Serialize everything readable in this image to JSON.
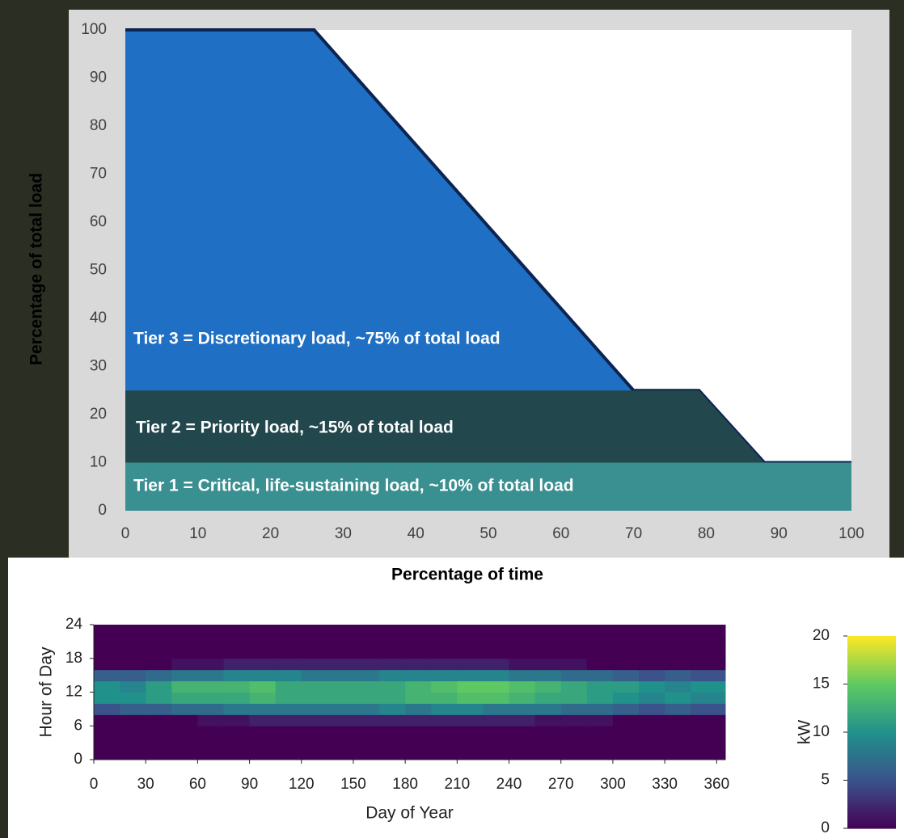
{
  "chart_data": [
    {
      "type": "area",
      "xlabel": "Percentage of time",
      "ylabel": "Percentage of total load",
      "x": [
        0,
        26,
        70,
        79,
        88,
        100
      ],
      "series": [
        {
          "name": "Tier 3 = Discretionary load, ~75% of total load",
          "color": "#1f6fc4",
          "values": [
            100,
            100,
            25,
            25,
            10,
            10
          ]
        },
        {
          "name": "Tier 2 = Priority load, ~15% of total load",
          "color": "#22474d",
          "values": [
            25,
            25,
            25,
            25,
            10,
            10
          ]
        },
        {
          "name": "Tier 1 = Critical, life-sustaining load, ~10% of total load",
          "color": "#3a8f91",
          "values": [
            10,
            10,
            10,
            10,
            10,
            10
          ]
        }
      ],
      "outline_color": "#0c2452",
      "xlim": [
        0,
        100
      ],
      "xticks": [
        0,
        10,
        20,
        30,
        40,
        50,
        60,
        70,
        80,
        90,
        100
      ],
      "ylim": [
        0,
        100
      ],
      "yticks": [
        0,
        10,
        20,
        30,
        40,
        50,
        60,
        70,
        80,
        90,
        100
      ],
      "grid": false
    },
    {
      "type": "heatmap",
      "xlabel": "Day of Year",
      "ylabel": "Hour of Day",
      "colorbar_label": "kW",
      "x": [
        0,
        15,
        30,
        45,
        60,
        75,
        90,
        105,
        120,
        135,
        150,
        165,
        180,
        195,
        210,
        225,
        240,
        255,
        270,
        285,
        300,
        315,
        330,
        345
      ],
      "y": [
        0,
        2,
        4,
        6,
        8,
        10,
        12,
        14,
        16,
        18,
        20,
        22
      ],
      "values": [
        [
          0,
          0,
          0,
          0,
          0,
          0,
          0,
          0,
          0,
          0,
          0,
          0,
          0,
          0,
          0,
          0,
          0,
          0,
          0,
          0,
          0,
          0,
          0,
          0
        ],
        [
          0,
          0,
          0,
          0,
          0,
          0,
          0,
          0,
          0,
          0,
          0,
          0,
          0,
          0,
          0,
          0,
          0,
          0,
          0,
          0,
          0,
          0,
          0,
          0
        ],
        [
          0,
          0,
          0,
          0,
          0,
          0,
          0,
          0,
          0,
          0,
          0,
          0,
          0,
          0,
          0,
          0,
          0,
          0,
          0,
          0,
          0,
          0,
          0,
          0
        ],
        [
          0,
          0,
          0,
          0,
          1,
          1,
          2,
          2,
          2,
          2,
          2,
          2,
          2,
          2,
          2,
          2,
          2,
          1,
          1,
          1,
          0,
          0,
          0,
          0
        ],
        [
          5,
          6,
          6,
          7,
          7,
          8,
          8,
          8,
          8,
          8,
          8,
          9,
          8,
          9,
          9,
          8,
          8,
          8,
          7,
          7,
          6,
          5,
          6,
          5
        ],
        [
          10,
          10,
          11,
          12,
          12,
          12,
          13,
          12,
          12,
          12,
          12,
          12,
          13,
          13,
          14,
          14,
          13,
          12,
          12,
          11,
          10,
          9,
          10,
          9
        ],
        [
          10,
          9,
          11,
          13,
          13,
          13,
          14,
          12,
          12,
          12,
          12,
          12,
          13,
          14,
          15,
          15,
          14,
          13,
          12,
          11,
          11,
          10,
          9,
          10
        ],
        [
          6,
          6,
          7,
          8,
          8,
          9,
          9,
          9,
          8,
          8,
          8,
          9,
          9,
          9,
          9,
          9,
          8,
          8,
          7,
          7,
          6,
          5,
          6,
          5
        ],
        [
          0,
          0,
          0,
          1,
          1,
          2,
          2,
          2,
          2,
          2,
          2,
          2,
          2,
          2,
          2,
          2,
          1,
          1,
          1,
          0,
          0,
          0,
          0,
          0
        ],
        [
          0,
          0,
          0,
          0,
          0,
          0,
          0,
          0,
          0,
          0,
          0,
          0,
          0,
          0,
          0,
          0,
          0,
          0,
          0,
          0,
          0,
          0,
          0,
          0
        ],
        [
          0,
          0,
          0,
          0,
          0,
          0,
          0,
          0,
          0,
          0,
          0,
          0,
          0,
          0,
          0,
          0,
          0,
          0,
          0,
          0,
          0,
          0,
          0,
          0
        ],
        [
          0,
          0,
          0,
          0,
          0,
          0,
          0,
          0,
          0,
          0,
          0,
          0,
          0,
          0,
          0,
          0,
          0,
          0,
          0,
          0,
          0,
          0,
          0,
          0
        ]
      ],
      "xlim": [
        0,
        365
      ],
      "xticks": [
        0,
        30,
        60,
        90,
        120,
        150,
        180,
        210,
        240,
        270,
        300,
        330,
        360
      ],
      "ylim": [
        0,
        24
      ],
      "yticks": [
        0,
        6,
        12,
        18,
        24
      ],
      "zlim": [
        0,
        20
      ],
      "zticks": [
        0,
        5,
        10,
        15,
        20
      ],
      "colormap": "viridis"
    }
  ]
}
